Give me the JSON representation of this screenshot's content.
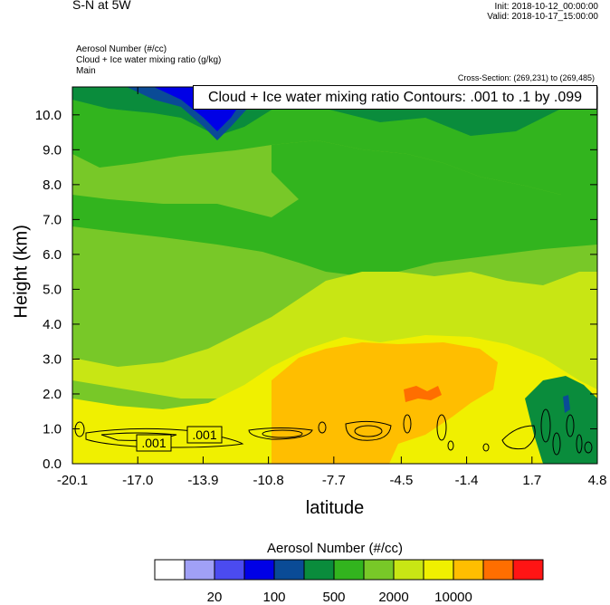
{
  "header": {
    "title": "S-N at 5W",
    "init": "Init: 2018-10-12_00:00:00",
    "valid": "Valid: 2018-10-17_15:00:00",
    "fields": [
      "Aerosol Number   (#/cc)",
      "Cloud + Ice water mixing ratio   (g/kg)",
      "Main"
    ],
    "cross_section": "Cross-Section: (269,231) to (269,485)",
    "contour_info": "Cloud + Ice water mixing ratio Contours: .001 to .1 by .099"
  },
  "chart_data": {
    "type": "heatmap",
    "xlabel": "latitude",
    "ylabel": "Height (km)",
    "x_ticks": [
      "-20.1",
      "-17.0",
      "-13.9",
      "-10.8",
      "-7.7",
      "-4.5",
      "-1.4",
      "1.7",
      "4.8"
    ],
    "x_tick_values": [
      -20.1,
      -17.0,
      -13.9,
      -10.8,
      -7.7,
      -4.5,
      -1.4,
      1.7,
      4.8
    ],
    "xlim": [
      -20.1,
      4.8
    ],
    "y_ticks": [
      "0.0",
      "1.0",
      "2.0",
      "3.0",
      "4.0",
      "5.0",
      "6.0",
      "7.0",
      "8.0",
      "9.0",
      "10.0"
    ],
    "y_tick_values": [
      0,
      1,
      2,
      3,
      4,
      5,
      6,
      7,
      8,
      9,
      10
    ],
    "ylim": [
      0,
      10.8
    ],
    "grid": false,
    "colorbar": {
      "title": "Aerosol Number  (#/cc)",
      "colors": [
        "#ffffff",
        "#a0a0f6",
        "#4b4bf0",
        "#0000e6",
        "#0a4b96",
        "#0a8c3c",
        "#32b41e",
        "#78c828",
        "#c8e614",
        "#f0f000",
        "#ffbe00",
        "#ff6e00",
        "#ff1414"
      ],
      "labels": [
        "20",
        "100",
        "500",
        "2000",
        "10000"
      ],
      "label_boundaries": [
        2,
        4,
        6,
        8,
        10
      ]
    },
    "contour_labels": [
      ".001",
      ".001"
    ]
  }
}
